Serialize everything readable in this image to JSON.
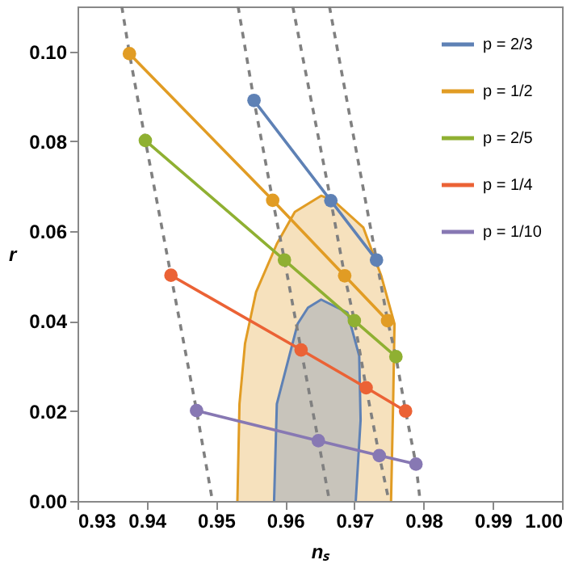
{
  "chart_data": {
    "type": "line",
    "xlabel": "nₛ",
    "ylabel": "r",
    "xlim": [
      0.93,
      1.0
    ],
    "xticks": [
      0.93,
      0.94,
      0.95,
      0.96,
      0.97,
      0.98,
      0.99,
      {
        "value": 1.0,
        "label": "1.00"
      }
    ],
    "ylim": [
      0,
      0.11
    ],
    "yticks": [
      {
        "value": 0,
        "label": "0.00"
      },
      0.02,
      0.04,
      0.06,
      0.08,
      {
        "value": 0.1,
        "label": "0.10"
      }
    ],
    "grid": false,
    "legend": "top right",
    "marker": "circle",
    "series": [
      {
        "type": "area",
        "color": "#e19c24",
        "marker": "none",
        "x": [
          0.9531,
          0.9534,
          0.9542,
          0.9558,
          0.9588,
          0.9614,
          0.9652,
          0.967,
          0.9713,
          0.9739,
          0.9758,
          0.9756,
          0.9753
        ],
        "values": [
          0,
          0.0216,
          0.035,
          0.0465,
          0.0572,
          0.0643,
          0.0679,
          0.0668,
          0.0608,
          0.05,
          0.0394,
          0.0216,
          0
        ]
      },
      {
        "type": "area",
        "color": "#5e81b5",
        "marker": "none",
        "x": [
          0.9584,
          0.9588,
          0.9618,
          0.9633,
          0.9652,
          0.969,
          0.9707,
          0.9709,
          0.9702
        ],
        "values": [
          0,
          0.0216,
          0.0394,
          0.043,
          0.0448,
          0.0419,
          0.0323,
          0.018,
          0
        ]
      },
      {
        "color": "#808080",
        "line_style": "dashed",
        "marker": "none",
        "x": [
          0.9364,
          0.9375,
          0.9398,
          0.9435,
          0.9472,
          0.9495
        ],
        "values": [
          0.11,
          0.0995,
          0.0802,
          0.0502,
          0.0201,
          0
        ]
      },
      {
        "color": "#808080",
        "line_style": "dashed",
        "marker": "none",
        "x": [
          0.9532,
          0.9555,
          0.9582,
          0.9599,
          0.9623,
          0.9648,
          0.9664
        ],
        "values": [
          0.11,
          0.0891,
          0.0669,
          0.0536,
          0.0336,
          0.0134,
          0
        ]
      },
      {
        "color": "#808080",
        "line_style": "dashed",
        "marker": "none",
        "x": [
          0.9611,
          0.9666,
          0.9686,
          0.97,
          0.9717,
          0.9736,
          0.975
        ],
        "values": [
          0.11,
          0.0668,
          0.0501,
          0.0401,
          0.0252,
          0.0101,
          0
        ]
      },
      {
        "color": "#808080",
        "line_style": "dashed",
        "marker": "none",
        "x": [
          0.9664,
          0.9732,
          0.9748,
          0.976,
          0.9774,
          0.9789,
          0.9795
        ],
        "values": [
          0.11,
          0.0536,
          0.0401,
          0.0321,
          0.02,
          0.0082,
          0
        ]
      },
      {
        "name": "p = 2/3",
        "color": "#5e81b5",
        "x": [
          0.9555,
          0.9666,
          0.9732
        ],
        "values": [
          0.0891,
          0.0668,
          0.0536
        ]
      },
      {
        "name": "p = 1/2",
        "color": "#e19c24",
        "x": [
          0.9375,
          0.9582,
          0.9686,
          0.9748
        ],
        "values": [
          0.0995,
          0.0669,
          0.0501,
          0.0401
        ]
      },
      {
        "name": "p = 2/5",
        "color": "#8fb032",
        "x": [
          0.9398,
          0.9599,
          0.97,
          0.976
        ],
        "values": [
          0.0802,
          0.0536,
          0.0401,
          0.0321
        ]
      },
      {
        "name": "p = 1/4",
        "color": "#eb6235",
        "x": [
          0.9435,
          0.9623,
          0.9717,
          0.9774
        ],
        "values": [
          0.0502,
          0.0336,
          0.0252,
          0.02
        ]
      },
      {
        "name": "p = 1/10",
        "color": "#8778b3",
        "x": [
          0.9472,
          0.9648,
          0.9736,
          0.9789
        ],
        "values": [
          0.0201,
          0.0134,
          0.0101,
          0.0082
        ]
      }
    ]
  }
}
